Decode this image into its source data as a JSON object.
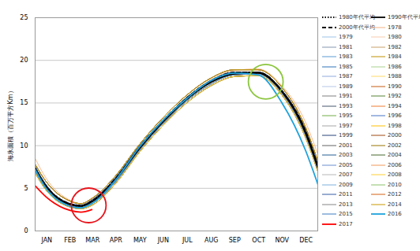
{
  "chart_data": {
    "type": "line",
    "y_label": "海氷面積（百万平方Km）",
    "x": [
      1,
      15,
      46,
      60,
      74,
      105,
      135,
      166,
      196,
      227,
      258,
      288,
      319,
      349,
      365
    ],
    "xlim": [
      1,
      365
    ],
    "xticks": [
      {
        "value": 16,
        "label": "JAN"
      },
      {
        "value": 46,
        "label": "FEB"
      },
      {
        "value": 75,
        "label": "MAR"
      },
      {
        "value": 105,
        "label": "APR"
      },
      {
        "value": 136,
        "label": "MAY"
      },
      {
        "value": 166,
        "label": "JUN"
      },
      {
        "value": 197,
        "label": "JUL"
      },
      {
        "value": 228,
        "label": "AUG"
      },
      {
        "value": 258,
        "label": "SEP"
      },
      {
        "value": 289,
        "label": "OCT"
      },
      {
        "value": 319,
        "label": "NOV"
      },
      {
        "value": 350,
        "label": "DEC"
      }
    ],
    "ylim": [
      0,
      25
    ],
    "yticks": [
      0,
      5,
      10,
      15,
      20,
      25
    ],
    "grid": true,
    "legend": "right",
    "highlights": [
      {
        "x": 70,
        "y": 3,
        "color": "#e8141c"
      },
      {
        "x": 298,
        "y": 17.5,
        "color": "#8cc63f"
      }
    ],
    "series": [
      {
        "name": "1980年代平均",
        "color": "#000000",
        "line_style": "dotted",
        "values": [
          7.4,
          5.3,
          3.1,
          2.9,
          3.5,
          6.1,
          9.7,
          12.9,
          15.5,
          17.5,
          18.5,
          18.6,
          16.4,
          11.7,
          7.6
        ]
      },
      {
        "name": "1990年代平均",
        "color": "#000000",
        "line_style": "solid",
        "values": [
          7.2,
          5.2,
          3.1,
          2.9,
          3.4,
          6.0,
          9.6,
          12.8,
          15.4,
          17.4,
          18.4,
          18.5,
          16.3,
          11.5,
          7.4
        ]
      },
      {
        "name": "2000年代平均",
        "color": "#000000",
        "line_style": "dashed",
        "values": [
          7.3,
          5.3,
          3.2,
          3.0,
          3.5,
          6.2,
          9.8,
          13.0,
          15.6,
          17.6,
          18.6,
          18.6,
          16.4,
          11.8,
          7.7
        ]
      },
      {
        "name": "1978",
        "color": "#f4b183",
        "values": [
          8.5,
          6.2,
          3.6,
          3.2,
          3.7,
          6.2,
          9.7,
          12.9,
          15.5,
          17.7,
          18.8,
          19.0,
          17.0,
          12.8,
          9.0
        ]
      },
      {
        "name": "1979",
        "color": "#9dc3e6",
        "values": [
          7.5,
          5.4,
          3.2,
          3.0,
          3.6,
          6.3,
          9.9,
          13.0,
          15.6,
          17.6,
          18.6,
          18.6,
          16.5,
          11.8,
          7.8
        ]
      },
      {
        "name": "1980",
        "color": "#f8cbad",
        "values": [
          7.8,
          5.8,
          3.5,
          3.2,
          3.8,
          6.5,
          10.1,
          13.3,
          15.9,
          17.9,
          18.9,
          18.9,
          16.8,
          12.2,
          8.2
        ]
      },
      {
        "name": "1981",
        "color": "#8497b0",
        "values": [
          7.0,
          5.0,
          3.0,
          2.8,
          3.2,
          5.8,
          9.4,
          12.6,
          15.2,
          17.2,
          18.3,
          18.4,
          16.1,
          11.2,
          7.2
        ]
      },
      {
        "name": "1982",
        "color": "#c9a06b",
        "values": [
          7.8,
          5.8,
          3.5,
          3.2,
          3.8,
          6.5,
          10.1,
          13.3,
          15.9,
          17.9,
          18.9,
          18.9,
          16.8,
          12.2,
          8.2
        ]
      },
      {
        "name": "1983",
        "color": "#5b9bd5",
        "values": [
          7.5,
          5.4,
          3.2,
          3.0,
          3.6,
          6.3,
          9.9,
          13.0,
          15.6,
          17.6,
          18.6,
          18.6,
          16.5,
          11.8,
          7.8
        ]
      },
      {
        "name": "1984",
        "color": "#bf9000",
        "values": [
          6.8,
          4.8,
          2.8,
          2.6,
          3.0,
          5.6,
          9.2,
          12.4,
          15.0,
          17.0,
          18.1,
          18.2,
          15.9,
          11.0,
          7.0
        ]
      },
      {
        "name": "1985",
        "color": "#2e75b6",
        "values": [
          7.2,
          5.2,
          3.1,
          2.9,
          3.4,
          6.0,
          9.6,
          12.8,
          15.4,
          17.4,
          18.4,
          18.5,
          16.3,
          11.5,
          7.4
        ]
      },
      {
        "name": "1986",
        "color": "#a9d18e",
        "values": [
          7.0,
          5.0,
          3.0,
          2.8,
          3.2,
          5.8,
          9.4,
          12.6,
          15.2,
          17.2,
          18.3,
          18.4,
          16.1,
          11.2,
          7.2
        ]
      },
      {
        "name": "1987",
        "color": "#8faadc",
        "values": [
          7.5,
          5.4,
          3.2,
          3.0,
          3.6,
          6.3,
          9.9,
          13.0,
          15.6,
          17.6,
          18.6,
          18.6,
          16.5,
          11.8,
          7.8
        ]
      },
      {
        "name": "1988",
        "color": "#ffd966",
        "values": [
          7.8,
          5.8,
          3.5,
          3.2,
          3.8,
          6.5,
          10.1,
          13.3,
          15.9,
          17.9,
          18.9,
          18.9,
          16.8,
          12.2,
          8.2
        ]
      },
      {
        "name": "1989",
        "color": "#b4c7e7",
        "values": [
          7.2,
          5.2,
          3.1,
          2.9,
          3.4,
          6.0,
          9.6,
          12.8,
          15.4,
          17.4,
          18.4,
          18.5,
          16.3,
          11.5,
          7.4
        ]
      },
      {
        "name": "1990",
        "color": "#c55a11",
        "values": [
          7.0,
          5.0,
          3.0,
          2.8,
          3.2,
          5.8,
          9.4,
          12.6,
          15.2,
          17.2,
          18.3,
          18.4,
          16.1,
          11.2,
          7.2
        ]
      },
      {
        "name": "1991",
        "color": "#7f7f7f",
        "values": [
          7.5,
          5.4,
          3.2,
          3.0,
          3.6,
          6.3,
          9.9,
          13.0,
          15.6,
          17.6,
          18.6,
          18.6,
          16.5,
          11.8,
          7.8
        ]
      },
      {
        "name": "1992",
        "color": "#548235",
        "values": [
          6.8,
          4.8,
          2.8,
          2.6,
          3.0,
          5.6,
          9.2,
          12.4,
          15.0,
          17.0,
          18.1,
          18.2,
          15.9,
          11.0,
          7.0
        ]
      },
      {
        "name": "1993",
        "color": "#44546a",
        "values": [
          7.2,
          5.2,
          3.1,
          2.9,
          3.4,
          6.0,
          9.6,
          12.8,
          15.4,
          17.4,
          18.4,
          18.5,
          16.3,
          11.5,
          7.4
        ]
      },
      {
        "name": "1994",
        "color": "#ed7d31",
        "values": [
          7.8,
          5.8,
          3.5,
          3.2,
          3.8,
          6.5,
          10.1,
          13.3,
          15.9,
          17.9,
          18.9,
          18.9,
          16.8,
          12.2,
          8.2
        ]
      },
      {
        "name": "1995",
        "color": "#70ad47",
        "values": [
          7.0,
          5.0,
          3.0,
          2.8,
          3.2,
          5.8,
          9.4,
          12.6,
          15.2,
          17.2,
          18.3,
          18.4,
          16.1,
          11.2,
          7.2
        ]
      },
      {
        "name": "1996",
        "color": "#4472c4",
        "values": [
          7.5,
          5.4,
          3.2,
          3.0,
          3.6,
          6.3,
          9.9,
          13.0,
          15.6,
          17.6,
          18.6,
          18.6,
          16.5,
          11.8,
          7.8
        ]
      },
      {
        "name": "1997",
        "color": "#a5a5a5",
        "values": [
          6.8,
          4.8,
          2.8,
          2.6,
          3.0,
          5.6,
          9.2,
          12.4,
          15.0,
          17.0,
          18.1,
          18.2,
          15.9,
          11.0,
          7.0
        ]
      },
      {
        "name": "1998",
        "color": "#ffc000",
        "values": [
          7.8,
          5.8,
          3.5,
          3.2,
          3.8,
          6.5,
          10.1,
          13.3,
          15.9,
          17.9,
          18.9,
          18.9,
          16.8,
          12.2,
          8.2
        ]
      },
      {
        "name": "1999",
        "color": "#264478",
        "values": [
          7.2,
          5.2,
          3.1,
          2.9,
          3.4,
          6.0,
          9.6,
          12.8,
          15.4,
          17.4,
          18.4,
          18.5,
          16.3,
          11.5,
          7.4
        ]
      },
      {
        "name": "2000",
        "color": "#9e480e",
        "values": [
          7.0,
          5.0,
          3.0,
          2.8,
          3.2,
          5.8,
          9.4,
          12.6,
          15.2,
          17.2,
          18.3,
          18.4,
          16.1,
          11.2,
          7.2
        ]
      },
      {
        "name": "2001",
        "color": "#636363",
        "values": [
          7.5,
          5.4,
          3.2,
          3.0,
          3.6,
          6.3,
          9.9,
          13.0,
          15.6,
          17.6,
          18.6,
          18.6,
          16.5,
          11.8,
          7.8
        ]
      },
      {
        "name": "2002",
        "color": "#997300",
        "values": [
          6.8,
          4.8,
          2.8,
          2.6,
          3.0,
          5.6,
          9.2,
          12.4,
          15.0,
          17.0,
          18.1,
          18.2,
          15.9,
          11.0,
          7.0
        ]
      },
      {
        "name": "2003",
        "color": "#255e91",
        "values": [
          7.8,
          5.8,
          3.5,
          3.2,
          3.8,
          6.5,
          10.1,
          13.3,
          15.9,
          17.9,
          18.9,
          18.9,
          16.8,
          12.2,
          8.2
        ]
      },
      {
        "name": "2004",
        "color": "#43682b",
        "values": [
          7.2,
          5.2,
          3.1,
          2.9,
          3.4,
          6.0,
          9.6,
          12.8,
          15.4,
          17.4,
          18.4,
          18.5,
          16.3,
          11.5,
          7.4
        ]
      },
      {
        "name": "2005",
        "color": "#698ed0",
        "values": [
          7.0,
          5.0,
          3.0,
          2.8,
          3.2,
          5.8,
          9.4,
          12.6,
          15.2,
          17.2,
          18.3,
          18.4,
          16.1,
          11.2,
          7.2
        ]
      },
      {
        "name": "2006",
        "color": "#f1975a",
        "values": [
          7.8,
          5.8,
          3.5,
          3.2,
          3.8,
          6.5,
          10.1,
          13.3,
          15.9,
          17.9,
          18.9,
          18.9,
          16.8,
          12.2,
          8.2
        ]
      },
      {
        "name": "2007",
        "color": "#b7b7b7",
        "values": [
          7.5,
          5.4,
          3.2,
          3.0,
          3.6,
          6.3,
          9.9,
          13.0,
          15.6,
          17.6,
          18.6,
          18.6,
          16.5,
          11.8,
          7.8
        ]
      },
      {
        "name": "2008",
        "color": "#ffcd33",
        "values": [
          6.8,
          4.8,
          2.8,
          2.6,
          3.0,
          5.6,
          9.2,
          12.4,
          15.0,
          17.0,
          18.1,
          18.2,
          15.9,
          11.0,
          7.0
        ]
      },
      {
        "name": "2009",
        "color": "#7cafdd",
        "values": [
          7.0,
          5.0,
          3.0,
          2.8,
          3.2,
          5.8,
          9.4,
          12.6,
          15.2,
          17.2,
          18.3,
          18.4,
          16.1,
          11.2,
          7.2
        ]
      },
      {
        "name": "2010",
        "color": "#8cc168",
        "values": [
          7.8,
          5.8,
          3.5,
          3.2,
          3.8,
          6.5,
          10.1,
          13.3,
          15.9,
          17.9,
          18.9,
          18.9,
          16.8,
          12.2,
          8.2
        ]
      },
      {
        "name": "2011",
        "color": "#335aa1",
        "values": [
          7.5,
          5.4,
          3.2,
          3.0,
          3.6,
          6.3,
          9.9,
          13.0,
          15.6,
          17.6,
          18.6,
          18.6,
          16.5,
          11.8,
          7.8
        ]
      },
      {
        "name": "2012",
        "color": "#d26012",
        "values": [
          7.8,
          5.8,
          3.5,
          3.2,
          3.8,
          6.5,
          10.1,
          13.3,
          15.9,
          17.9,
          18.9,
          18.9,
          16.8,
          12.2,
          8.2
        ]
      },
      {
        "name": "2013",
        "color": "#848484",
        "values": [
          7.8,
          5.8,
          3.5,
          3.2,
          3.8,
          6.5,
          10.1,
          13.3,
          15.9,
          17.9,
          18.9,
          18.9,
          16.8,
          12.2,
          8.2
        ]
      },
      {
        "name": "2014",
        "color": "#c89800",
        "values": [
          7.8,
          5.8,
          3.5,
          3.2,
          3.8,
          6.5,
          10.1,
          13.3,
          15.9,
          17.9,
          18.9,
          18.9,
          16.8,
          12.2,
          8.2
        ]
      },
      {
        "name": "2015",
        "color": "#3b7bbf",
        "values": [
          7.5,
          5.4,
          3.2,
          3.0,
          3.6,
          6.3,
          9.9,
          13.0,
          15.6,
          17.6,
          18.6,
          18.6,
          16.5,
          11.8,
          7.8
        ]
      },
      {
        "name": "2016",
        "color": "#1fa2dc",
        "values": [
          7.2,
          5.0,
          2.9,
          2.7,
          3.2,
          6.0,
          9.8,
          13.0,
          15.5,
          17.6,
          18.5,
          18.3,
          15.0,
          9.5,
          5.5
        ]
      },
      {
        "name": "2017",
        "color": "#ff0000",
        "values": [
          5.3,
          4.0,
          2.4,
          2.2,
          2.5,
          null,
          null,
          null,
          null,
          null,
          null,
          null,
          null,
          null,
          null
        ]
      }
    ]
  }
}
